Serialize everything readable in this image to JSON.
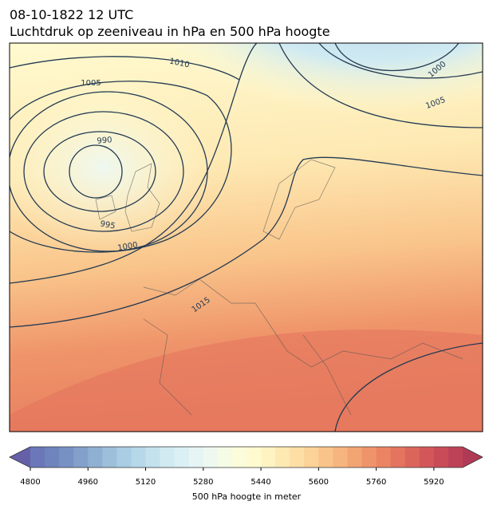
{
  "header": {
    "title": "08-10-1822 12 UTC",
    "subtitle": "Luchtdruk op zeeniveau in hPa en 500 hPa hoogte"
  },
  "map": {
    "isobar_labels": [
      1010,
      1005,
      990,
      995,
      1000,
      1015,
      1000,
      1005
    ]
  },
  "colorbar": {
    "label": "500 hPa hoogte in meter",
    "lim": [
      4800,
      6000
    ],
    "ticks": [
      4800,
      4960,
      5120,
      5280,
      5440,
      5600,
      5760,
      5920
    ],
    "colors": [
      "#6b77b8",
      "#6f83bd",
      "#7891c4",
      "#83a0cb",
      "#8fb0d2",
      "#9dbfda",
      "#a9cde2",
      "#b6d8e8",
      "#c3e2ee",
      "#d0eaf2",
      "#dbf0f4",
      "#e5f4f4",
      "#eef8f0",
      "#f6fbe6",
      "#fbfcd9",
      "#fffad0",
      "#fff3c2",
      "#fee9b3",
      "#fddea4",
      "#fbd297",
      "#f9c48a",
      "#f6b57e",
      "#f3a473",
      "#ef946a",
      "#ea8463",
      "#e4745e",
      "#dc655b",
      "#d35759",
      "#c94b58",
      "#be4257"
    ],
    "under_color": "#6560a8",
    "over_color": "#b03a55"
  }
}
